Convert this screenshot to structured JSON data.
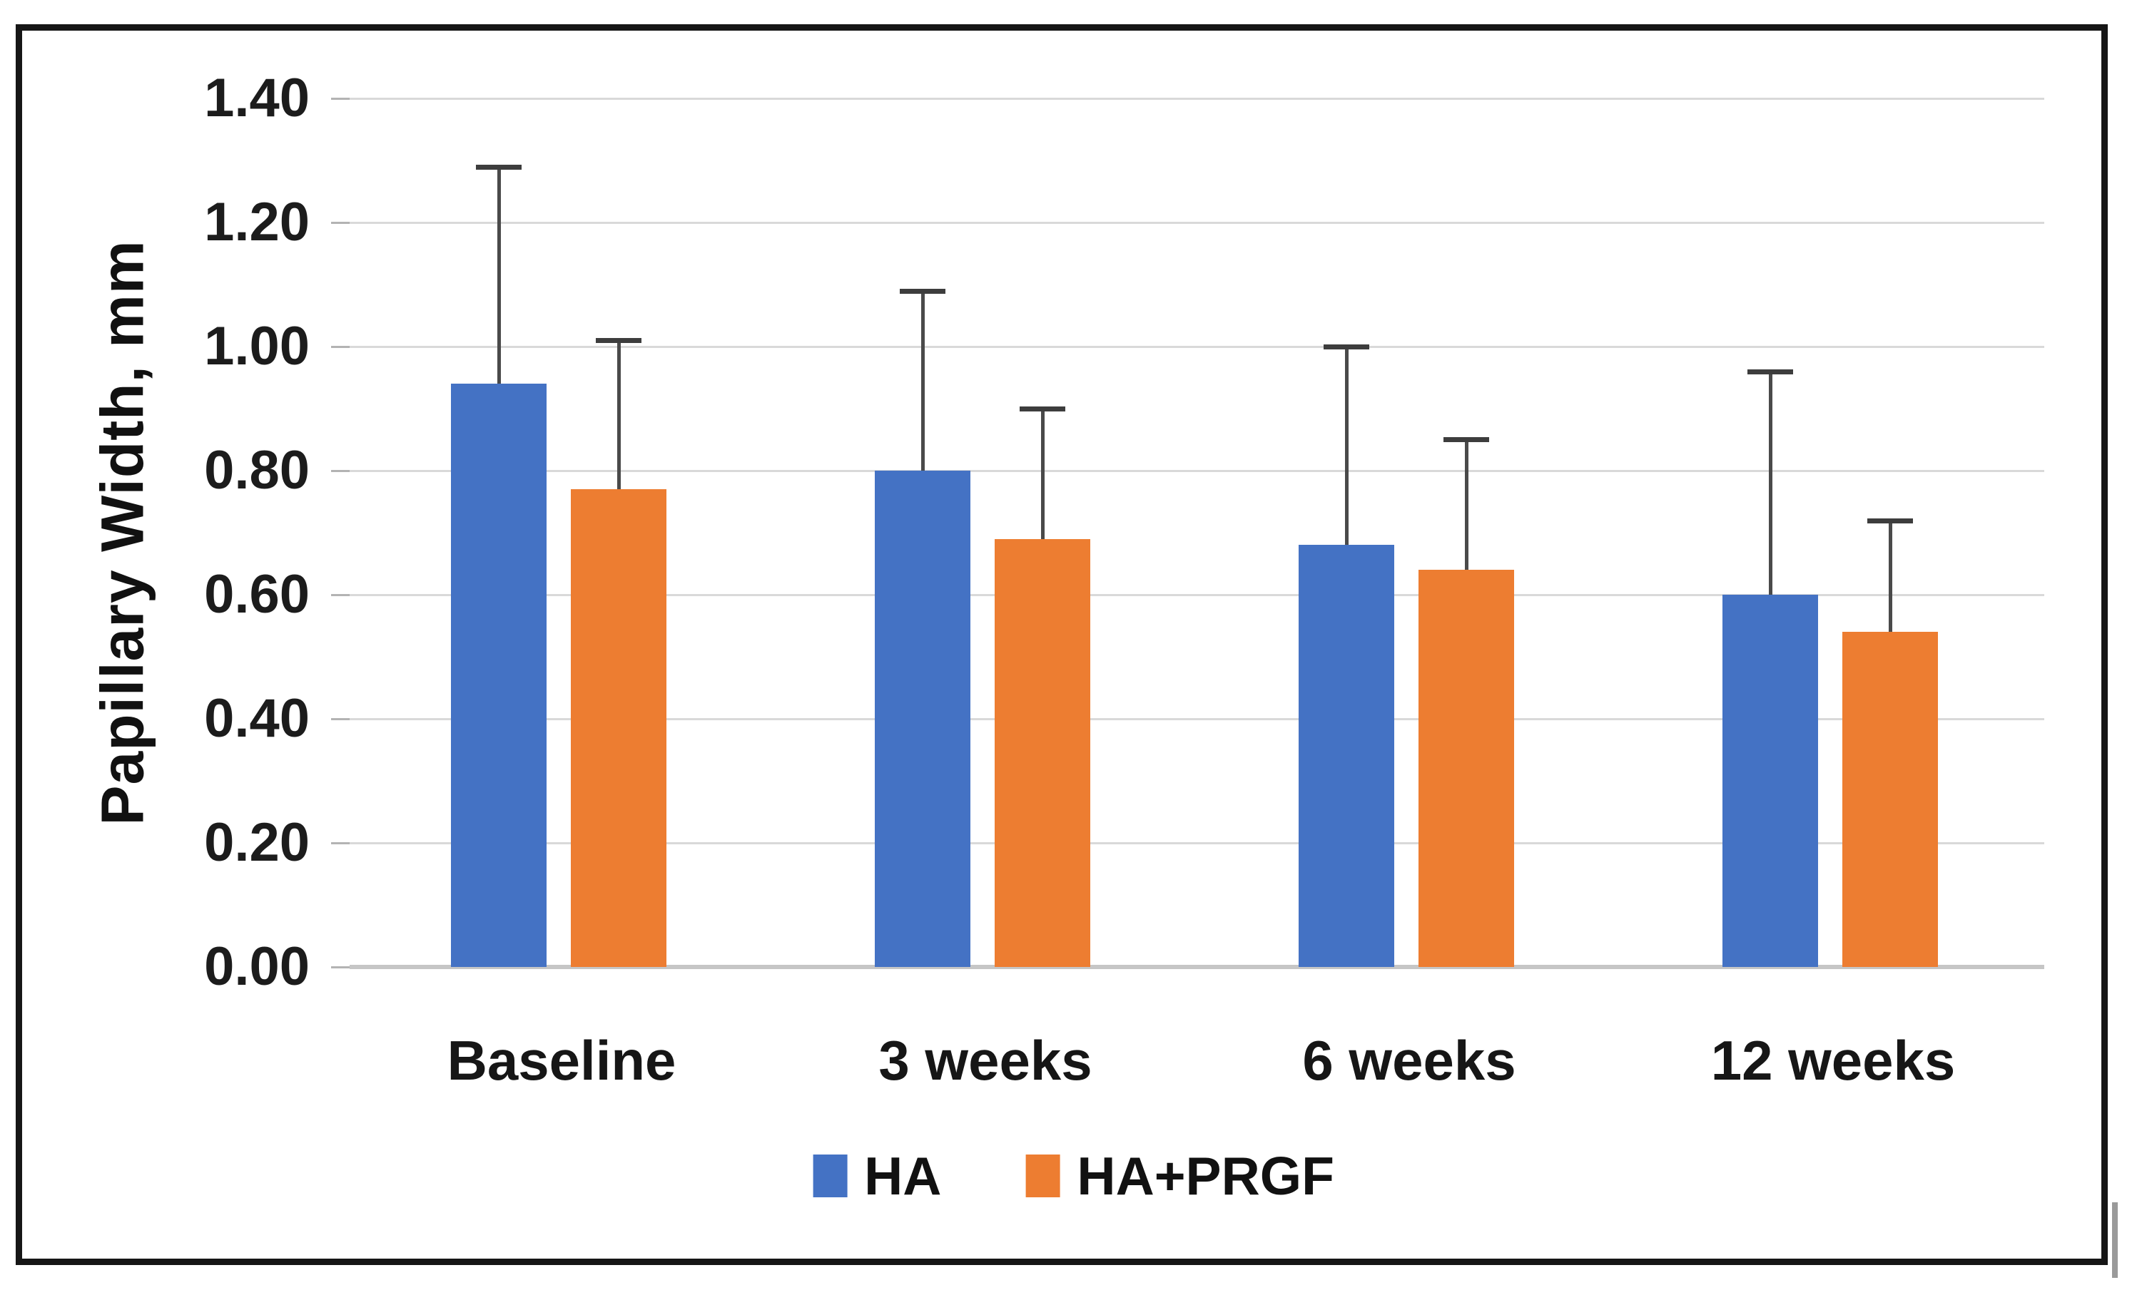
{
  "figure": {
    "background": "#ffffff",
    "frame_color": "#161616"
  },
  "chart_data": {
    "type": "bar",
    "title": "",
    "xlabel": "",
    "ylabel": "Papillary Width, mm",
    "categories": [
      "Baseline",
      "3 weeks",
      "6 weeks",
      "12 weeks"
    ],
    "series": [
      {
        "name": "HA",
        "color": "#4472C4",
        "values": [
          0.94,
          0.8,
          0.68,
          0.6
        ],
        "error_upper": [
          0.35,
          0.29,
          0.32,
          0.36
        ]
      },
      {
        "name": "HA+PRGF",
        "color": "#ED7D31",
        "values": [
          0.77,
          0.69,
          0.64,
          0.54
        ],
        "error_upper": [
          0.24,
          0.21,
          0.21,
          0.18
        ]
      }
    ],
    "ylim": [
      0.0,
      1.4
    ],
    "ytick_step": 0.2,
    "yticks": [
      "1.40",
      "1.20",
      "1.00",
      "0.80",
      "0.60",
      "0.40",
      "0.20",
      "0.00"
    ],
    "grid": true,
    "error_bars": "upper-only",
    "legend_position": "bottom-center"
  },
  "legend": {
    "items": [
      {
        "label": "HA",
        "color": "#4472C4"
      },
      {
        "label": "HA+PRGF",
        "color": "#ED7D31"
      }
    ]
  },
  "colors": {
    "gridline": "#d9d9d9",
    "axis_line": "#c6c6c6",
    "error_bar": "#4a4a4a",
    "text": "#161616"
  }
}
